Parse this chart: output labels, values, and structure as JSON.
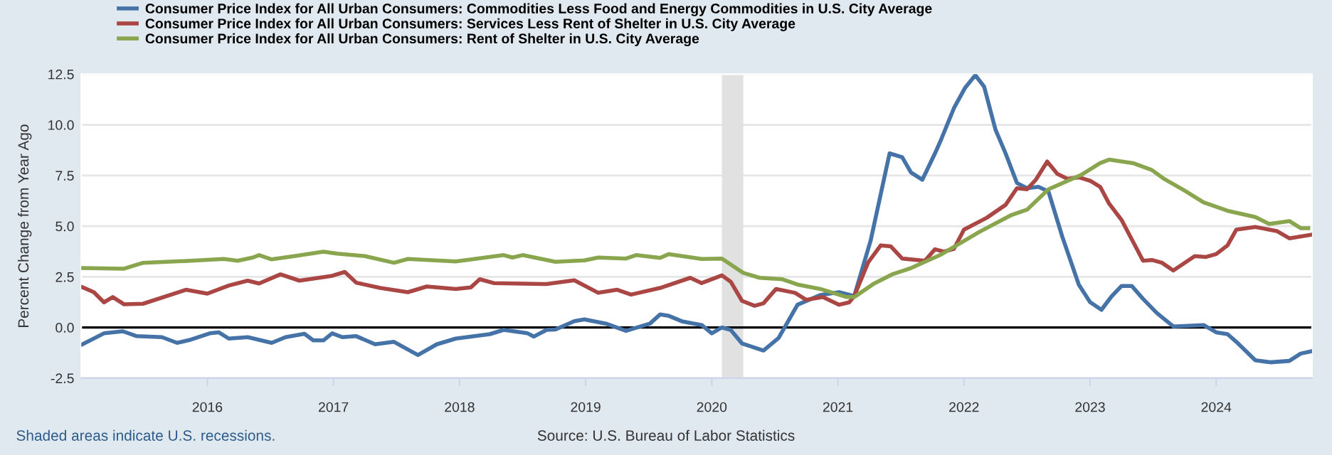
{
  "chart_data": {
    "type": "line",
    "ylabel": "Percent Change from Year Ago",
    "xlim": [
      2015.0,
      2024.76
    ],
    "xticks": [
      2016,
      2017,
      2018,
      2019,
      2020,
      2021,
      2022,
      2023,
      2024
    ],
    "ylim": [
      -2.5,
      12.5
    ],
    "yticks": [
      {
        "value": -2.5,
        "label": "-2.5"
      },
      {
        "value": 0,
        "label": "0.0"
      },
      2.5,
      {
        "value": 5,
        "label": "5.0"
      },
      7.5,
      {
        "value": 10,
        "label": "10.0"
      },
      12.5
    ],
    "grid": "y",
    "legend": "top left",
    "line_style": "solid",
    "ref_lines": [
      {
        "axis": "y",
        "value": 0,
        "color": "#000000"
      }
    ],
    "bands": [
      {
        "axis": "x",
        "from": 2020.08,
        "to": 2020.25,
        "color": "#e1e1e1"
      }
    ],
    "annotations": [
      "Shaded areas indicate U.S. recessions.",
      "Source: U.S. Bureau of Labor Statistics"
    ],
    "series": [
      {
        "name": "Consumer Price Index for All Urban Consumers: Commodities Less Food and Energy Commodities in U.S. City Average",
        "color": "#4572a7",
        "x": [
          2015.01,
          2015.18,
          2015.33,
          2015.44,
          2015.64,
          2015.76,
          2015.87,
          2016.02,
          2016.09,
          2016.17,
          2016.32,
          2016.51,
          2016.62,
          2016.77,
          2016.84,
          2016.92,
          2016.99,
          2017.07,
          2017.18,
          2017.33,
          2017.48,
          2017.67,
          2017.82,
          2017.97,
          2018.24,
          2018.35,
          2018.54,
          2018.59,
          2018.69,
          2018.76,
          2018.91,
          2018.99,
          2019.16,
          2019.32,
          2019.51,
          2019.59,
          2019.66,
          2019.77,
          2019.92,
          2020.0,
          2020.08,
          2020.15,
          2020.24,
          2020.41,
          2020.53,
          2020.68,
          2020.86,
          2021.01,
          2021.13,
          2021.26,
          2021.41,
          2021.51,
          2021.58,
          2021.67,
          2021.77,
          2021.82,
          2021.92,
          2022.01,
          2022.09,
          2022.16,
          2022.25,
          2022.33,
          2022.42,
          2022.5,
          2022.59,
          2022.67,
          2022.78,
          2022.91,
          2023.0,
          2023.09,
          2023.17,
          2023.25,
          2023.33,
          2023.42,
          2023.53,
          2023.66,
          2023.75,
          2023.9,
          2024.0,
          2024.09,
          2024.16,
          2024.31,
          2024.43,
          2024.58,
          2024.67,
          2024.75
        ],
        "values": [
          -0.83,
          -0.29,
          -0.19,
          -0.43,
          -0.48,
          -0.76,
          -0.6,
          -0.29,
          -0.24,
          -0.55,
          -0.48,
          -0.76,
          -0.48,
          -0.31,
          -0.64,
          -0.64,
          -0.29,
          -0.48,
          -0.43,
          -0.83,
          -0.71,
          -1.36,
          -0.83,
          -0.55,
          -0.33,
          -0.12,
          -0.29,
          -0.45,
          -0.12,
          -0.1,
          0.31,
          0.4,
          0.19,
          -0.17,
          0.19,
          0.64,
          0.57,
          0.29,
          0.12,
          -0.29,
          0.0,
          -0.12,
          -0.79,
          -1.14,
          -0.52,
          1.12,
          1.6,
          1.74,
          1.55,
          4.29,
          8.59,
          8.4,
          7.65,
          7.29,
          8.59,
          9.29,
          10.82,
          11.84,
          12.45,
          11.88,
          9.76,
          8.59,
          7.13,
          6.87,
          6.94,
          6.71,
          4.47,
          2.12,
          1.25,
          0.87,
          1.53,
          2.05,
          2.05,
          1.41,
          0.71,
          0.05,
          0.07,
          0.12,
          -0.24,
          -0.33,
          -0.71,
          -1.62,
          -1.72,
          -1.65,
          -1.29,
          -1.18
        ]
      },
      {
        "name": "Consumer Price Index for All Urban Consumers: Services Less Rent of Shelter in U.S. City Average",
        "color": "#aa4643",
        "x": [
          2015.01,
          2015.1,
          2015.18,
          2015.25,
          2015.34,
          2015.49,
          2015.83,
          2016.0,
          2016.17,
          2016.32,
          2016.41,
          2016.58,
          2016.73,
          2016.99,
          2017.09,
          2017.18,
          2017.37,
          2017.59,
          2017.74,
          2017.97,
          2018.09,
          2018.16,
          2018.27,
          2018.69,
          2018.91,
          2019.1,
          2019.25,
          2019.36,
          2019.59,
          2019.83,
          2019.92,
          2020.08,
          2020.15,
          2020.24,
          2020.34,
          2020.41,
          2020.51,
          2020.66,
          2020.75,
          2020.88,
          2021.01,
          2021.09,
          2021.13,
          2021.24,
          2021.34,
          2021.42,
          2021.51,
          2021.69,
          2021.77,
          2021.84,
          2021.92,
          2022.0,
          2022.18,
          2022.33,
          2022.42,
          2022.5,
          2022.57,
          2022.66,
          2022.74,
          2022.82,
          2022.91,
          2023.0,
          2023.08,
          2023.15,
          2023.25,
          2023.42,
          2023.49,
          2023.57,
          2023.66,
          2023.83,
          2023.92,
          2024.0,
          2024.09,
          2024.16,
          2024.31,
          2024.48,
          2024.58,
          2024.75
        ],
        "values": [
          1.98,
          1.74,
          1.24,
          1.5,
          1.14,
          1.17,
          1.86,
          1.67,
          2.07,
          2.31,
          2.17,
          2.62,
          2.31,
          2.55,
          2.74,
          2.21,
          1.95,
          1.74,
          2.02,
          1.9,
          1.98,
          2.38,
          2.19,
          2.14,
          2.33,
          1.71,
          1.86,
          1.62,
          1.95,
          2.45,
          2.19,
          2.57,
          2.26,
          1.31,
          1.07,
          1.19,
          1.9,
          1.71,
          1.36,
          1.5,
          1.12,
          1.24,
          1.55,
          3.21,
          4.05,
          4.0,
          3.4,
          3.29,
          3.86,
          3.74,
          3.88,
          4.83,
          5.41,
          6.05,
          6.87,
          6.82,
          7.29,
          8.19,
          7.58,
          7.34,
          7.41,
          7.24,
          6.94,
          6.12,
          5.3,
          3.29,
          3.33,
          3.19,
          2.81,
          3.52,
          3.48,
          3.62,
          4.05,
          4.83,
          4.96,
          4.76,
          4.4,
          4.57
        ]
      },
      {
        "name": "Consumer Price Index for All Urban Consumers: Rent of Shelter in U.S. City Average",
        "color": "#89a54e",
        "x": [
          2015.01,
          2015.34,
          2015.49,
          2015.87,
          2016.13,
          2016.24,
          2016.36,
          2016.41,
          2016.51,
          2016.69,
          2016.92,
          2017.03,
          2017.25,
          2017.48,
          2017.59,
          2017.97,
          2018.12,
          2018.35,
          2018.42,
          2018.5,
          2018.76,
          2018.99,
          2019.1,
          2019.32,
          2019.4,
          2019.59,
          2019.66,
          2019.92,
          2020.08,
          2020.25,
          2020.38,
          2020.56,
          2020.68,
          2020.86,
          2021.07,
          2021.13,
          2021.28,
          2021.43,
          2021.58,
          2021.81,
          2022.12,
          2022.37,
          2022.5,
          2022.67,
          2022.93,
          2023.08,
          2023.15,
          2023.34,
          2023.49,
          2023.58,
          2023.75,
          2023.9,
          2024.09,
          2024.31,
          2024.42,
          2024.58,
          2024.67,
          2024.73
        ],
        "values": [
          2.93,
          2.9,
          3.19,
          3.29,
          3.38,
          3.29,
          3.45,
          3.57,
          3.36,
          3.52,
          3.74,
          3.64,
          3.52,
          3.19,
          3.38,
          3.26,
          3.38,
          3.57,
          3.45,
          3.57,
          3.24,
          3.31,
          3.45,
          3.4,
          3.57,
          3.43,
          3.62,
          3.38,
          3.4,
          2.69,
          2.45,
          2.38,
          2.12,
          1.9,
          1.5,
          1.5,
          2.14,
          2.62,
          2.93,
          3.57,
          4.71,
          5.53,
          5.81,
          6.82,
          7.53,
          8.11,
          8.28,
          8.11,
          7.77,
          7.36,
          6.75,
          6.17,
          5.76,
          5.45,
          5.11,
          5.25,
          4.9,
          4.9
        ]
      }
    ]
  }
}
